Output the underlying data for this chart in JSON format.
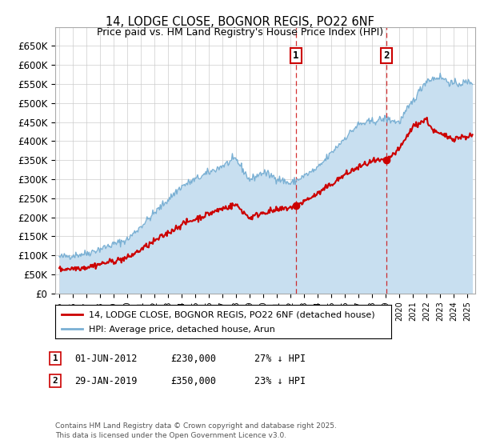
{
  "title": "14, LODGE CLOSE, BOGNOR REGIS, PO22 6NF",
  "subtitle": "Price paid vs. HM Land Registry's House Price Index (HPI)",
  "ylim": [
    0,
    700000
  ],
  "yticks": [
    0,
    50000,
    100000,
    150000,
    200000,
    250000,
    300000,
    350000,
    400000,
    450000,
    500000,
    550000,
    600000,
    650000
  ],
  "xlim_start": 1994.7,
  "xlim_end": 2025.6,
  "legend_line1": "14, LODGE CLOSE, BOGNOR REGIS, PO22 6NF (detached house)",
  "legend_line2": "HPI: Average price, detached house, Arun",
  "annotation1_date": 2012.42,
  "annotation1_label": "1",
  "annotation1_price": 230000,
  "annotation1_col1": "01-JUN-2012",
  "annotation1_col2": "£230,000",
  "annotation1_col3": "27% ↓ HPI",
  "annotation2_date": 2019.08,
  "annotation2_label": "2",
  "annotation2_price": 350000,
  "annotation2_col1": "29-JAN-2019",
  "annotation2_col2": "£350,000",
  "annotation2_col3": "23% ↓ HPI",
  "line_color_property": "#cc0000",
  "line_color_hpi": "#7ab0d4",
  "hpi_fill_color": "#c8dff0",
  "marker_color": "#cc0000",
  "vline_color": "#cc0000",
  "footer_line1": "Contains HM Land Registry data © Crown copyright and database right 2025.",
  "footer_line2": "This data is licensed under the Open Government Licence v3.0.",
  "background_color": "#ffffff",
  "grid_color": "#cccccc"
}
